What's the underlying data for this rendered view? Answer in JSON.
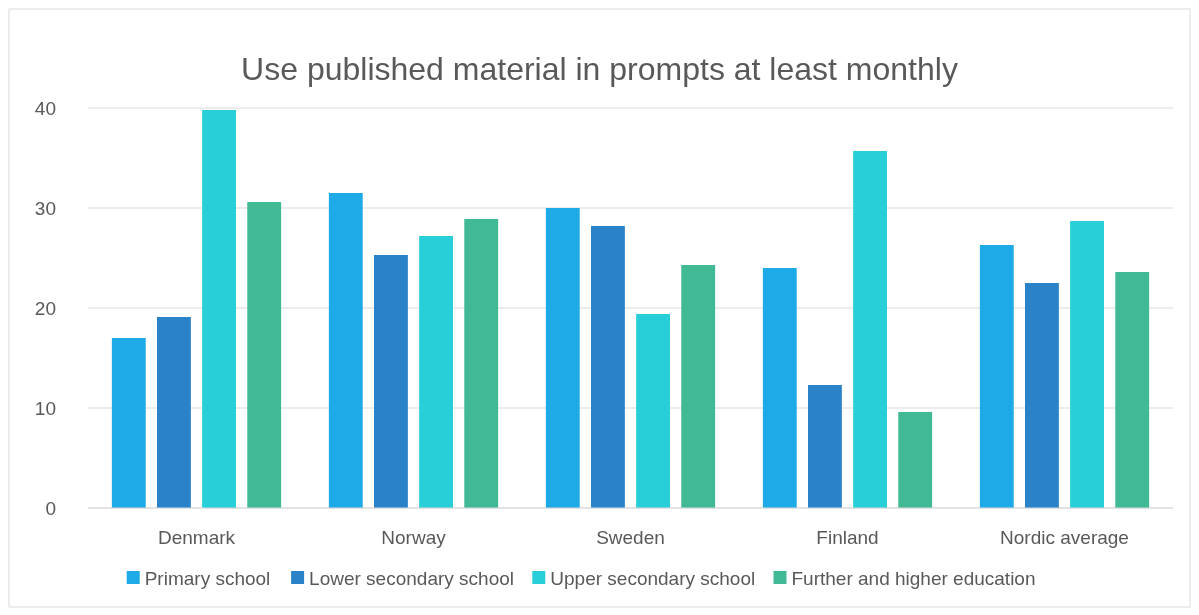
{
  "chart_data": {
    "type": "bar",
    "title": "Use published material in prompts at least monthly",
    "categories": [
      "Denmark",
      "Norway",
      "Sweden",
      "Finland",
      "Nordic average"
    ],
    "series": [
      {
        "name": "Primary school",
        "color": "#1eaae6",
        "values": [
          17.0,
          31.5,
          30.0,
          24.0,
          26.3
        ]
      },
      {
        "name": "Lower secondary school",
        "color": "#2a82c8",
        "values": [
          19.1,
          25.3,
          28.2,
          12.3,
          22.5
        ]
      },
      {
        "name": "Upper secondary school",
        "color": "#28cfd8",
        "values": [
          39.8,
          27.2,
          19.4,
          35.7,
          28.7
        ]
      },
      {
        "name": "Further and higher education",
        "color": "#40b994",
        "values": [
          30.6,
          28.9,
          24.3,
          9.6,
          23.6
        ]
      }
    ],
    "ylim": [
      0,
      40
    ],
    "yticks": [
      0,
      10,
      20,
      30,
      40
    ],
    "grid": "y",
    "legend": "bottom"
  }
}
